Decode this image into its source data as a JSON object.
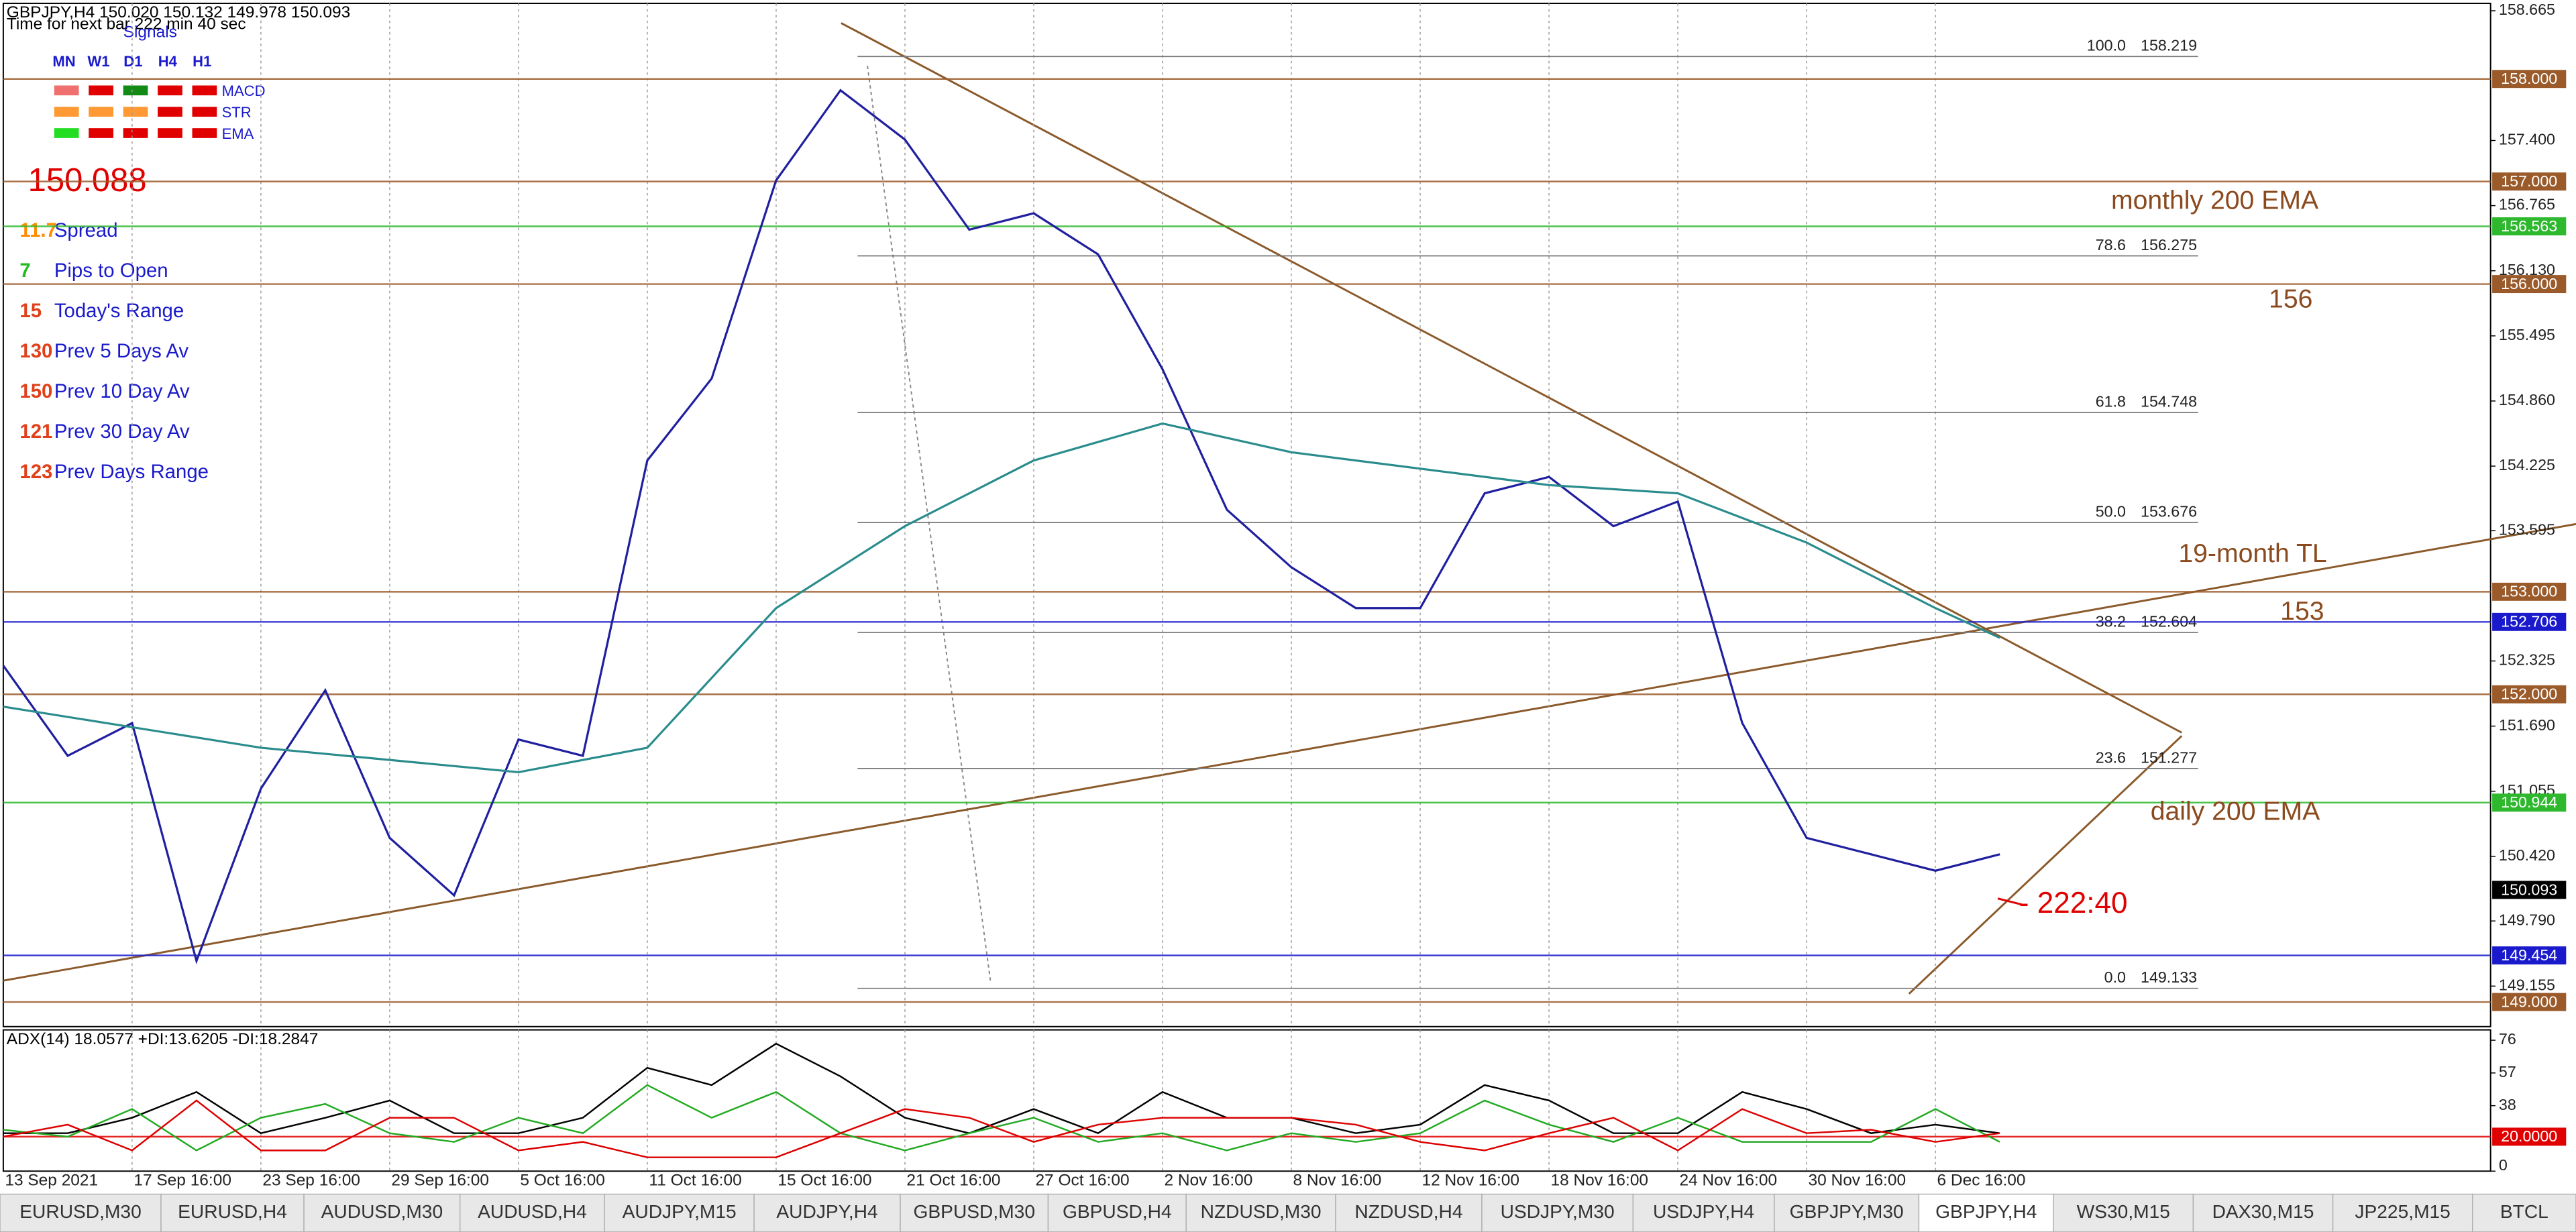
{
  "header": {
    "symbol_line": "GBPJPY,H4  150.020 150.132 149.978 150.093",
    "timer": "Time for next bar 222 min 40 sec"
  },
  "signals": {
    "title": "Signals",
    "timeframes": [
      "MN",
      "W1",
      "D1",
      "H4",
      "H1"
    ],
    "rows": [
      {
        "name": "MACD",
        "colors": [
          "#f07070",
          "#e00000",
          "#138a13",
          "#e00000",
          "#e00000"
        ]
      },
      {
        "name": "STR",
        "colors": [
          "#ff9933",
          "#ff9933",
          "#ff9933",
          "#e00000",
          "#e00000"
        ]
      },
      {
        "name": "EMA",
        "colors": [
          "#22dd22",
          "#e00000",
          "#e00000",
          "#e00000",
          "#e00000"
        ]
      }
    ]
  },
  "info_panel": {
    "price": 150.088,
    "stats": [
      {
        "value": 11.7,
        "label": "Spread",
        "color": "#ff8c00"
      },
      {
        "value": 7,
        "label": "Pips to Open",
        "color": "#22bb22"
      },
      {
        "value": 15,
        "label": "Today's Range",
        "color": "#e0401a"
      },
      {
        "value": 130,
        "label": "Prev 5 Days Av",
        "color": "#e0401a"
      },
      {
        "value": 150,
        "label": "Prev 10 Day Av",
        "color": "#e0401a"
      },
      {
        "value": 121,
        "label": "Prev 30 Day Av",
        "color": "#e0401a"
      },
      {
        "value": 123,
        "label": "Prev Days Range",
        "color": "#e0401a"
      }
    ]
  },
  "chart_data": [
    {
      "type": "line",
      "xlim": [
        0,
        19.31
      ],
      "xticks": [
        {
          "value": 0,
          "label": "13 Sep 2021"
        },
        {
          "value": 1,
          "label": "17 Sep 16:00"
        },
        {
          "value": 2,
          "label": "23 Sep 16:00"
        },
        {
          "value": 3,
          "label": "29 Sep 16:00"
        },
        {
          "value": 4,
          "label": "5 Oct 16:00"
        },
        {
          "value": 5,
          "label": "11 Oct 16:00"
        },
        {
          "value": 6,
          "label": "15 Oct 16:00"
        },
        {
          "value": 7,
          "label": "21 Oct 16:00"
        },
        {
          "value": 8,
          "label": "27 Oct 16:00"
        },
        {
          "value": 9,
          "label": "2 Nov 16:00"
        },
        {
          "value": 10,
          "label": "8 Nov 16:00"
        },
        {
          "value": 11,
          "label": "12 Nov 16:00"
        },
        {
          "value": 12,
          "label": "18 Nov 16:00"
        },
        {
          "value": 13,
          "label": "24 Nov 16:00"
        },
        {
          "value": 14,
          "label": "30 Nov 16:00"
        },
        {
          "value": 15,
          "label": "6 Dec 16:00"
        }
      ],
      "ylim": [
        148.76,
        158.737
      ],
      "yticks": [
        158.665,
        {
          "value": 157.4,
          "label": "157.400"
        },
        156.765,
        {
          "value": 156.13,
          "label": "156.130"
        },
        155.495,
        {
          "value": 154.86,
          "label": "154.860"
        },
        154.225,
        153.595,
        152.325,
        {
          "value": 151.69,
          "label": "151.690"
        },
        151.055,
        {
          "value": 150.42,
          "label": "150.420"
        },
        {
          "value": 149.79,
          "label": "149.790"
        },
        149.155
      ],
      "grid": "x",
      "series": [
        {
          "color": "#1f1f9f",
          "x": [
            0,
            0.5,
            1,
            1.5,
            2,
            2.5,
            3,
            3.5,
            4,
            4.5,
            5,
            5.5,
            6,
            6.5,
            7,
            7.5,
            8,
            8.5,
            9,
            9.5,
            10,
            10.5,
            11,
            11.5,
            12,
            12.5,
            13,
            13.5,
            14,
            14.5,
            15,
            15.5
          ],
          "values": [
            152.28,
            151.4,
            151.72,
            149.4,
            151.08,
            152.04,
            150.6,
            150.04,
            151.56,
            151.4,
            154.28,
            155.08,
            157.01,
            157.89,
            157.41,
            156.53,
            156.69,
            156.29,
            155.17,
            153.8,
            153.24,
            152.84,
            152.84,
            153.96,
            154.12,
            153.64,
            153.88,
            151.72,
            150.6,
            150.44,
            150.28,
            150.44
          ]
        },
        {
          "color": "#2a8c8c",
          "x": [
            0,
            2,
            4,
            5,
            6,
            7,
            8,
            9,
            10,
            11,
            12,
            13,
            14,
            15,
            15.5
          ],
          "values": [
            151.88,
            151.48,
            151.24,
            151.48,
            152.84,
            153.64,
            154.28,
            154.64,
            154.36,
            154.2,
            154.04,
            153.96,
            153.48,
            152.84,
            152.55
          ]
        }
      ],
      "levels": [
        {
          "value": 158,
          "label": "158.000",
          "color": "#9a5a2a"
        },
        {
          "value": 157,
          "label": "157.000",
          "color": "#9a5a2a"
        },
        {
          "value": 156.563,
          "label": "156.563",
          "color": "#2db82d"
        },
        {
          "value": 156,
          "label": "156.000",
          "color": "#9a5a2a"
        },
        {
          "value": 153,
          "label": "153.000",
          "color": "#9a5a2a"
        },
        {
          "value": 152.706,
          "label": "152.706",
          "color": "#1a1acc"
        },
        {
          "value": 152,
          "label": "152.000",
          "color": "#9a5a2a"
        },
        {
          "value": 150.944,
          "label": "150.944",
          "color": "#2db82d"
        },
        {
          "value": 150.093,
          "label": "150.093",
          "color": "#000000",
          "line": false
        },
        {
          "value": 149.454,
          "label": "149.454",
          "color": "#1a1acc"
        },
        {
          "value": 149,
          "label": "149.000",
          "color": "#9a5a2a"
        }
      ],
      "fibonacci": [
        {
          "ratio": "100.0",
          "price": 158.219
        },
        {
          "ratio": "78.6",
          "price": 156.275
        },
        {
          "ratio": "61.8",
          "price": 154.748
        },
        {
          "ratio": "50.0",
          "price": 153.676
        },
        {
          "ratio": "38.2",
          "price": 152.604
        },
        {
          "ratio": "23.6",
          "price": 151.277
        },
        {
          "ratio": "0.0",
          "price": 149.133
        }
      ],
      "annotations": [
        "monthly 200 EMA",
        "156",
        "19-month TL",
        "153",
        "daily 200 EMA",
        "- 222:40"
      ]
    },
    {
      "type": "line",
      "title": "ADX(14) 18.0577 +DI:13.6205 -DI:18.2847",
      "x": [
        0,
        0.5,
        1,
        1.5,
        2,
        2.5,
        3,
        3.5,
        4,
        4.5,
        5,
        5.5,
        6,
        6.5,
        7,
        7.5,
        8,
        8.5,
        9,
        9.5,
        10,
        10.5,
        11,
        11.5,
        12,
        12.5,
        13,
        13.5,
        14,
        14.5,
        15,
        15.5
      ],
      "xlim": [
        0,
        19.31
      ],
      "ylim": [
        0,
        82
      ],
      "yticks": [
        76,
        57,
        38,
        0
      ],
      "levels": [
        {
          "value": 20,
          "label": "20.0000",
          "color": "#e00000"
        }
      ],
      "series": [
        {
          "color": "#000000",
          "values": [
            22,
            22,
            31,
            46,
            22,
            31,
            41,
            22,
            22,
            31,
            60,
            50,
            74,
            55,
            31,
            22,
            36,
            22,
            46,
            31,
            31,
            22,
            27,
            50,
            41,
            22,
            22,
            46,
            36,
            22,
            27,
            22
          ]
        },
        {
          "color": "#22aa22",
          "values": [
            24,
            20,
            36,
            12,
            31,
            39,
            22,
            17,
            31,
            22,
            50,
            31,
            46,
            22,
            12,
            22,
            31,
            17,
            22,
            12,
            22,
            17,
            22,
            41,
            27,
            17,
            31,
            17,
            17,
            17,
            36,
            17
          ]
        },
        {
          "color": "#dd0000",
          "values": [
            20,
            27,
            12,
            41,
            12,
            12,
            31,
            31,
            12,
            17,
            8,
            8,
            8,
            22,
            36,
            31,
            17,
            27,
            31,
            31,
            31,
            27,
            17,
            12,
            22,
            31,
            12,
            36,
            22,
            24,
            17,
            22
          ]
        }
      ]
    }
  ],
  "tabs": {
    "items": [
      "EURUSD,M30",
      "EURUSD,H4",
      "AUDUSD,M30",
      "AUDUSD,H4",
      "AUDJPY,M15",
      "AUDJPY,H4",
      "GBPUSD,M30",
      "GBPUSD,H4",
      "NZDUSD,M30",
      "NZDUSD,H4",
      "USDJPY,M30",
      "USDJPY,H4",
      "GBPJPY,M30",
      "GBPJPY,H4",
      "WS30,M15",
      "DAX30,M15",
      "JP225,M15",
      "BTCL"
    ],
    "active": 13
  }
}
